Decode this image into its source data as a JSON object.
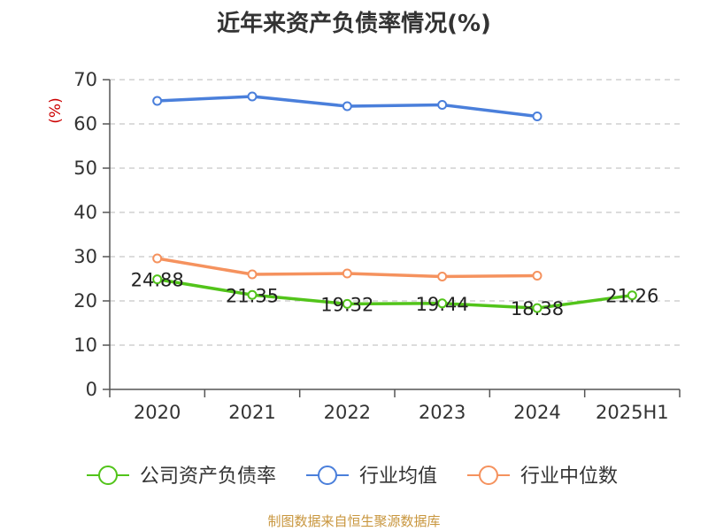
{
  "chart_data": {
    "type": "line",
    "title": "近年来资产负债率情况(%)",
    "ylabel": "(%)",
    "xlabel": "",
    "categories": [
      "2020",
      "2021",
      "2022",
      "2023",
      "2024",
      "2025H1"
    ],
    "yticks": [
      "0",
      "10",
      "20",
      "30",
      "40",
      "50",
      "60",
      "70"
    ],
    "ylim": [
      0,
      70
    ],
    "grid": true,
    "legend_position": "bottom",
    "series": [
      {
        "name": "公司资产负债率",
        "color": "#52c41a",
        "values": [
          24.88,
          21.35,
          19.32,
          19.44,
          18.38,
          21.26
        ],
        "labels": [
          "24.88",
          "21.35",
          "19.32",
          "19.44",
          "18.38",
          "21.26"
        ]
      },
      {
        "name": "行业均值",
        "color": "#4a7fdb",
        "values": [
          65.2,
          66.2,
          64.0,
          64.3,
          61.7,
          null
        ]
      },
      {
        "name": "行业中位数",
        "color": "#f5925e",
        "values": [
          29.6,
          26.0,
          26.2,
          25.5,
          25.7,
          null
        ]
      }
    ]
  },
  "footer": {
    "source": "制图数据来自恒生聚源数据库"
  }
}
